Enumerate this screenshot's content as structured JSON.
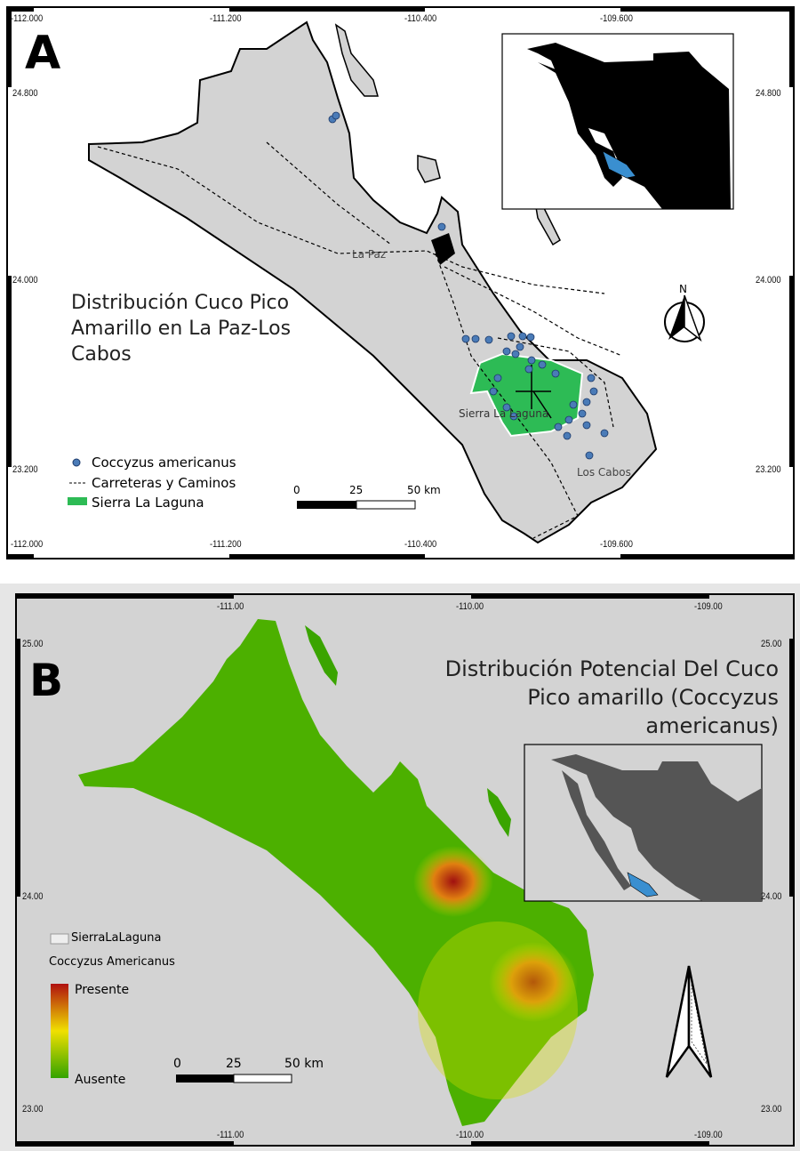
{
  "panel_a": {
    "letter": "A",
    "title": "Distribución Cuco Pico Amarillo en La Paz-Los Cabos",
    "title_lines": [
      "Distribución Cuco Pico",
      "Amarillo en La Paz-Los",
      "Cabos"
    ],
    "lon_ticks": [
      "-112.000",
      "-111.200",
      "-110.400",
      "-109.600"
    ],
    "lat_ticks": [
      "24.800",
      "24.000",
      "23.200"
    ],
    "places": {
      "la_paz": "La Paz",
      "sierra": "Sierra La Laguna",
      "los_cabos": "Los Cabos"
    },
    "legend": [
      "Coccyzus americanus",
      "Carreteras y Caminos",
      "Sierra La Laguna"
    ],
    "scale": [
      "0",
      "25",
      "50 km"
    ],
    "north": "N",
    "colors": {
      "land": "#d3d3d3",
      "sierra": "#2dbb55",
      "points": "#4a7bb7",
      "inset_land": "#000000",
      "highlight": "#3a8fd0"
    }
  },
  "panel_b": {
    "letter": "B",
    "title_lines": [
      "Distribución Potencial Del Cuco",
      "Pico amarillo (Coccyzus",
      "americanus)"
    ],
    "lon_ticks": [
      "-111.00",
      "-110.00",
      "-109.00"
    ],
    "lat_ticks": [
      "25.00",
      "24.00",
      "23.00"
    ],
    "legend": {
      "layer": "SierraLaLaguna",
      "raster": "Coccyzus Americanus",
      "high": "Presente",
      "low": "Ausente"
    },
    "scale": [
      "0",
      "25",
      "50 km"
    ],
    "colors": {
      "background": "#d3d3d3",
      "low": "#33a300",
      "mid": "#f0e000",
      "high": "#b01010",
      "inset_land": "#555555"
    }
  }
}
